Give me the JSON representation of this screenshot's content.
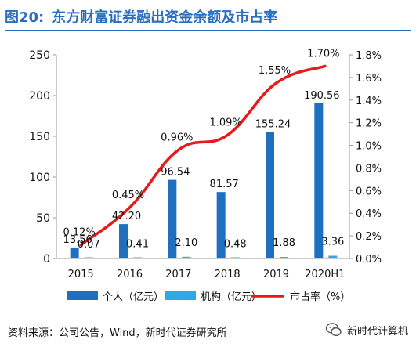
{
  "header": {
    "figure_no": "图20:",
    "title": "东方财富证券融出资金余额及市占率"
  },
  "footer": {
    "source": "资料来源：公司公告，Wind，新时代证券研究所",
    "watermark": "新时代计算机"
  },
  "colors": {
    "title": "#2a6ebf",
    "individual": "#1f6fbf",
    "institution": "#2fa8e8",
    "share_line": "#e8181b"
  },
  "chart_data": {
    "type": "bar",
    "categories": [
      "2015",
      "2016",
      "2017",
      "2018",
      "2019",
      "2020H1"
    ],
    "series": [
      {
        "name": "个人（亿元）",
        "type": "bar",
        "axis": "left",
        "values": [
          13.56,
          42.2,
          96.54,
          81.57,
          155.24,
          190.56
        ],
        "labels": [
          "13.56",
          "42.20",
          "96.54",
          "81.57",
          "155.24",
          "190.56"
        ]
      },
      {
        "name": "机构（亿元）",
        "type": "bar",
        "axis": "left",
        "values": [
          0.07,
          0.41,
          2.1,
          0.48,
          1.88,
          3.36
        ],
        "labels": [
          "0.07",
          "0.41",
          "2.10",
          "0.48",
          "1.88",
          "3.36"
        ]
      },
      {
        "name": "市占率（%）",
        "type": "line",
        "axis": "right",
        "values": [
          0.12,
          0.45,
          0.96,
          1.09,
          1.55,
          1.7
        ],
        "labels": [
          "0.12%",
          "0.45%",
          "0.96%",
          "1.09%",
          "1.55%",
          "1.70%"
        ]
      }
    ],
    "y_left": {
      "lim": [
        0,
        250
      ],
      "ticks": [
        "0",
        "50",
        "100",
        "150",
        "200",
        "250"
      ]
    },
    "y_right": {
      "lim": [
        0,
        1.8
      ],
      "ticks": [
        "0.0%",
        "0.2%",
        "0.4%",
        "0.6%",
        "0.8%",
        "1.0%",
        "1.2%",
        "1.4%",
        "1.6%",
        "1.8%"
      ]
    },
    "legend_position": "bottom",
    "grid": false
  }
}
